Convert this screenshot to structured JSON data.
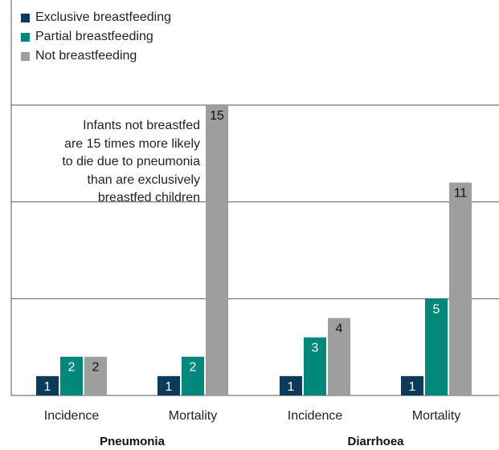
{
  "chart_data": {
    "type": "bar",
    "groups": [
      {
        "label": "Pneumonia",
        "categories": [
          "Incidence",
          "Mortality"
        ]
      },
      {
        "label": "Diarrhoea",
        "categories": [
          "Incidence",
          "Mortality"
        ]
      }
    ],
    "series": [
      {
        "name": "Exclusive breastfeeding",
        "color": "#0b3a5c",
        "values": [
          1,
          1,
          1,
          1
        ]
      },
      {
        "name": "Partial breastfeeding",
        "color": "#00897b",
        "values": [
          2,
          2,
          3,
          5
        ]
      },
      {
        "name": "Not breastfeeding",
        "color": "#9e9e9e",
        "values": [
          2,
          15,
          4,
          11
        ]
      }
    ],
    "ylim": [
      0,
      15
    ],
    "grid_lines": [
      5,
      10
    ],
    "legend_position": "top-left",
    "annotation": {
      "lines": [
        "Infants not breastfed",
        "are 15 times more likely",
        "to die due to pneumonia",
        "than are exclusively",
        "breastfed children"
      ]
    }
  }
}
